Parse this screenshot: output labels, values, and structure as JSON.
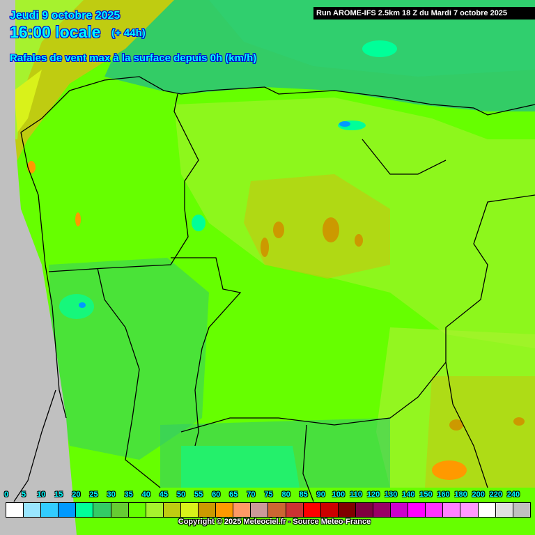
{
  "header": {
    "date": "Jeudi 9 octobre 2025",
    "time": "16:00 locale",
    "lead": "(+ 44h)",
    "parameter": "Rafales de vent max à la surface depuis 0h (km/h)",
    "run": "Run AROME-IFS 2.5km 18 Z du Mardi 7 octobre 2025"
  },
  "legend": {
    "labels": [
      "0",
      "5",
      "10",
      "15",
      "20",
      "25",
      "30",
      "35",
      "40",
      "45",
      "50",
      "55",
      "60",
      "65",
      "70",
      "75",
      "80",
      "85",
      "90",
      "100",
      "110",
      "120",
      "130",
      "140",
      "150",
      "160",
      "180",
      "200",
      "220",
      "240"
    ],
    "colors": [
      "#ffffff",
      "#99e6ff",
      "#33ccff",
      "#0099ff",
      "#00ff99",
      "#33cc66",
      "#66cc33",
      "#66ff00",
      "#a6f22e",
      "#bfcc11",
      "#d9f21a",
      "#cc9900",
      "#ff9900",
      "#ff9966",
      "#cc9999",
      "#cc6633",
      "#cc3333",
      "#ff0000",
      "#cc0000",
      "#800000",
      "#800040",
      "#990066",
      "#cc00cc",
      "#ff00ff",
      "#ff33ff",
      "#ff80ff",
      "#ff99ff",
      "#ffffff",
      "#e0e0e0",
      "#c0c0c0"
    ]
  },
  "copyright": "Copyright © 2025 Meteociel.fr - Source Meteo-France"
}
